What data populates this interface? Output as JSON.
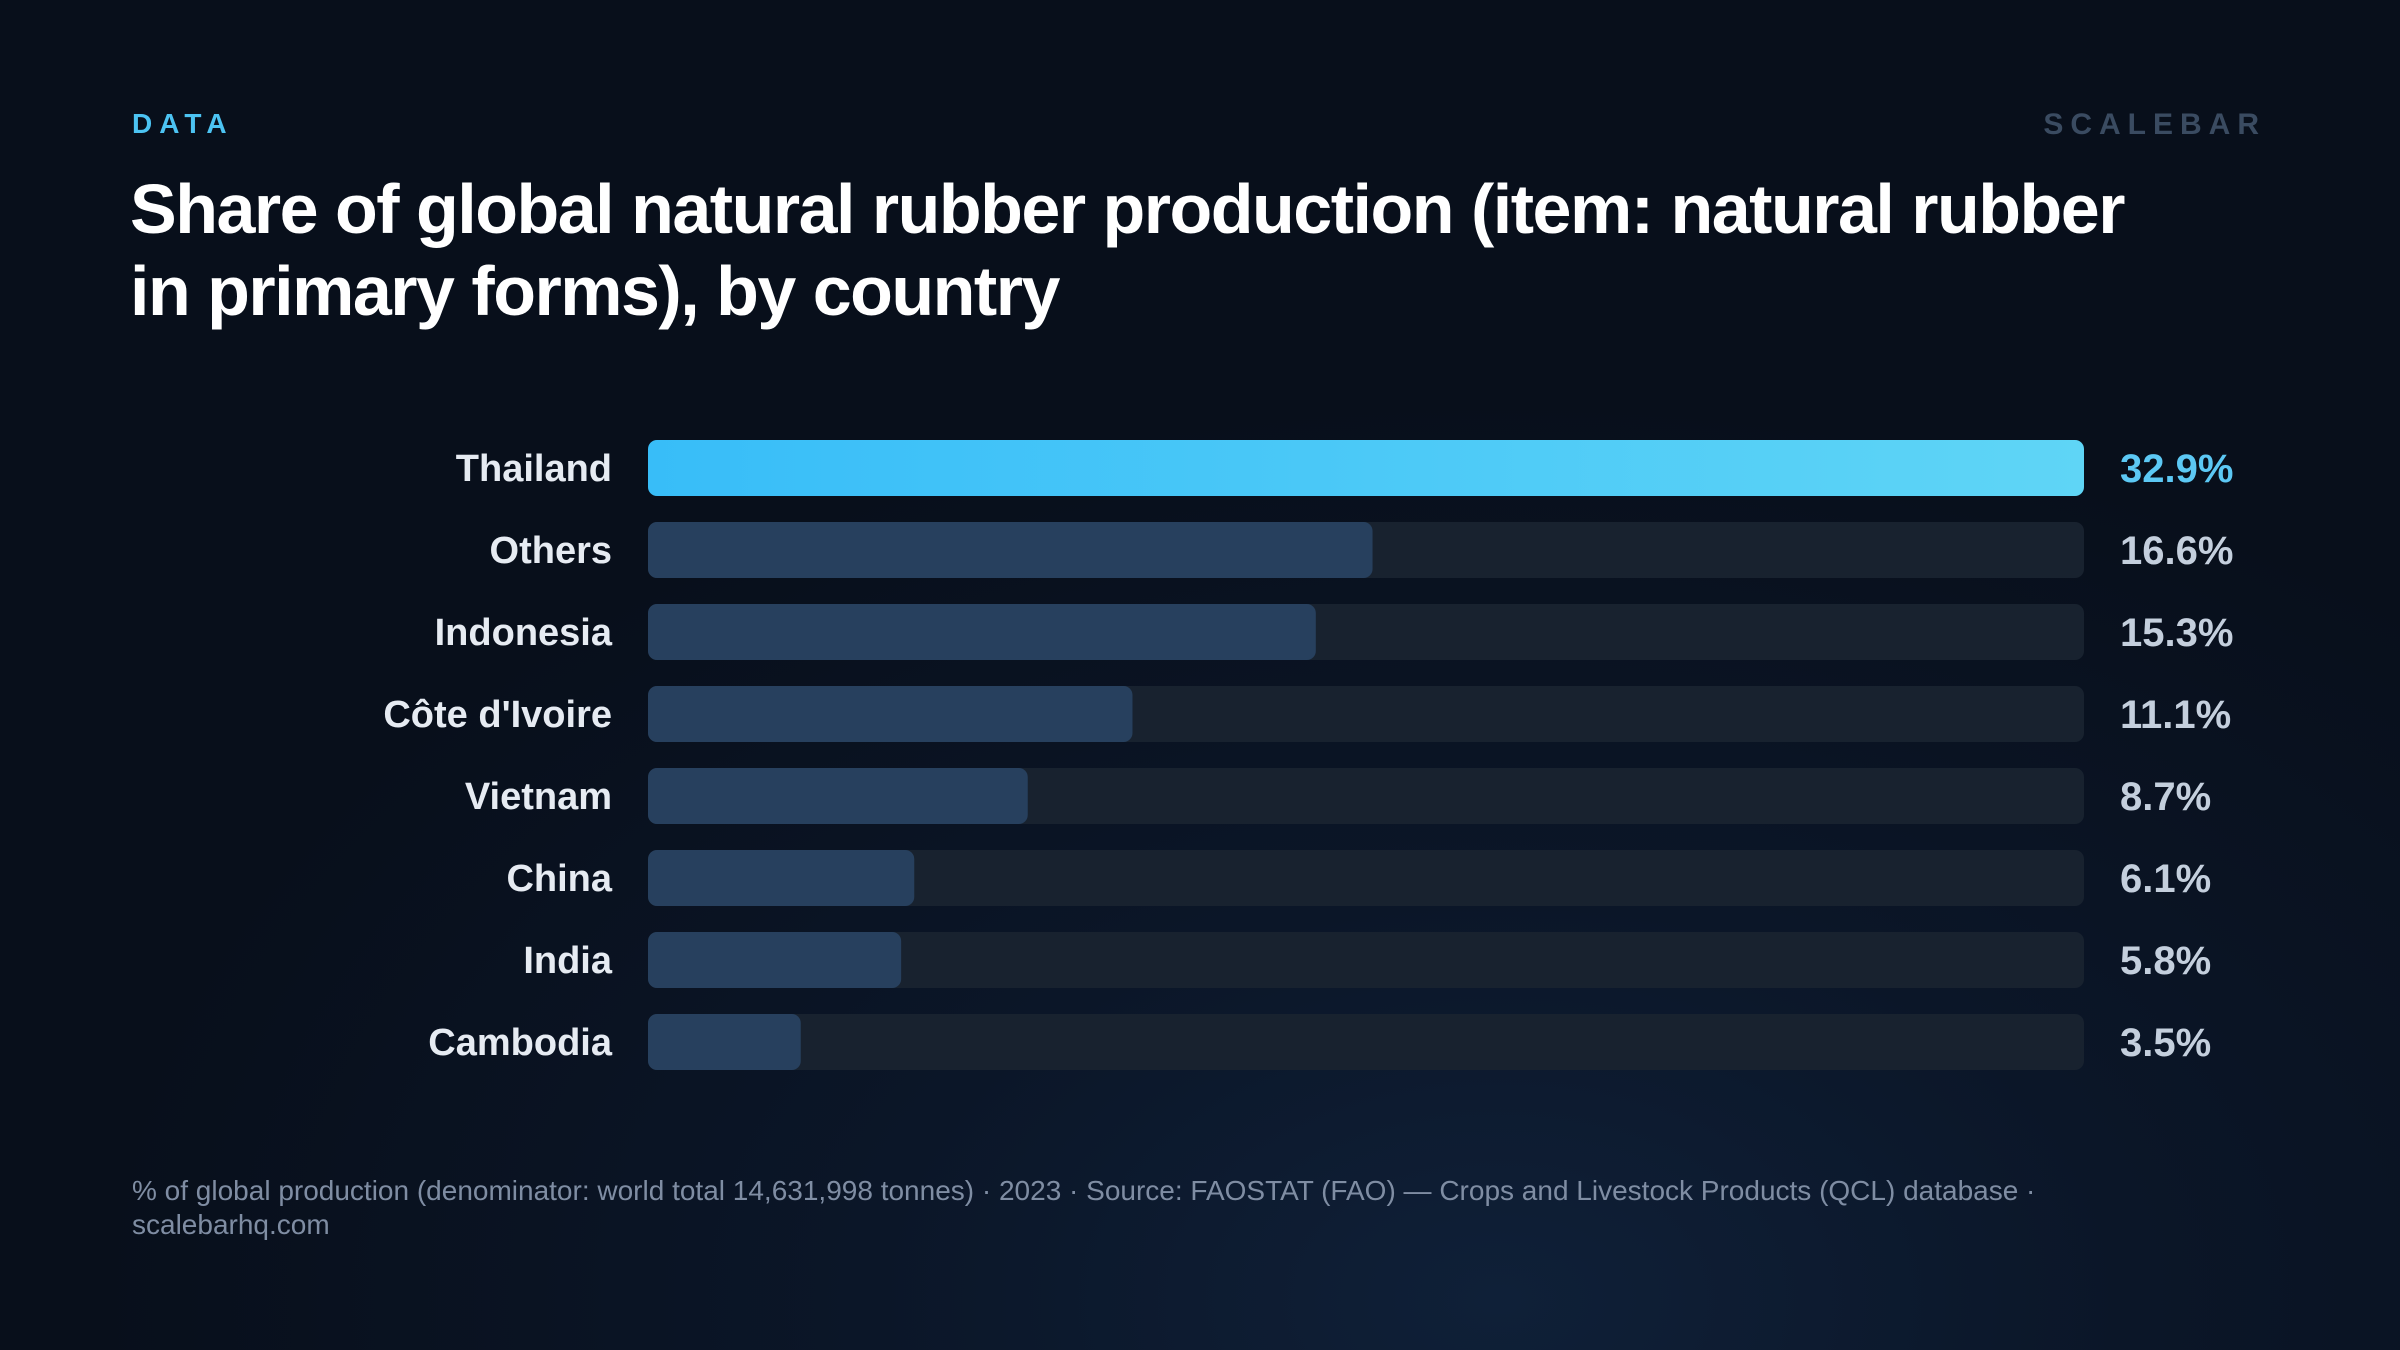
{
  "header": {
    "kicker": "DATA",
    "brand": "SCALEBAR",
    "title": "Share of global natural rubber production (item: natural rubber in primary forms), by country"
  },
  "footnote": "% of global production (denominator: world total 14,631,998 tonnes) · 2023 · Source: FAOSTAT (FAO) — Crops and Livestock Products (QCL) database · scalebarhq.com",
  "colors": {
    "highlight_start": "#38bdf8",
    "highlight_end": "#5fd5f6",
    "bar": "#27405e",
    "track": "#18222f",
    "highlight_label": "#5cc8f4",
    "value_label": "#c4cfdd",
    "category_label": "#e6ebf2"
  },
  "chart_data": {
    "type": "bar",
    "orientation": "horizontal",
    "categories": [
      "Thailand",
      "Others",
      "Indonesia",
      "Côte d'Ivoire",
      "Vietnam",
      "China",
      "India",
      "Cambodia"
    ],
    "values": [
      32.9,
      16.6,
      15.3,
      11.1,
      8.7,
      6.1,
      5.8,
      3.5
    ],
    "value_labels": [
      "32.9%",
      "16.6%",
      "15.3%",
      "11.1%",
      "8.7%",
      "6.1%",
      "5.8%",
      "3.5%"
    ],
    "xlim": [
      0,
      32.9
    ],
    "highlight_index": 0,
    "grid": false,
    "legend": "none"
  }
}
